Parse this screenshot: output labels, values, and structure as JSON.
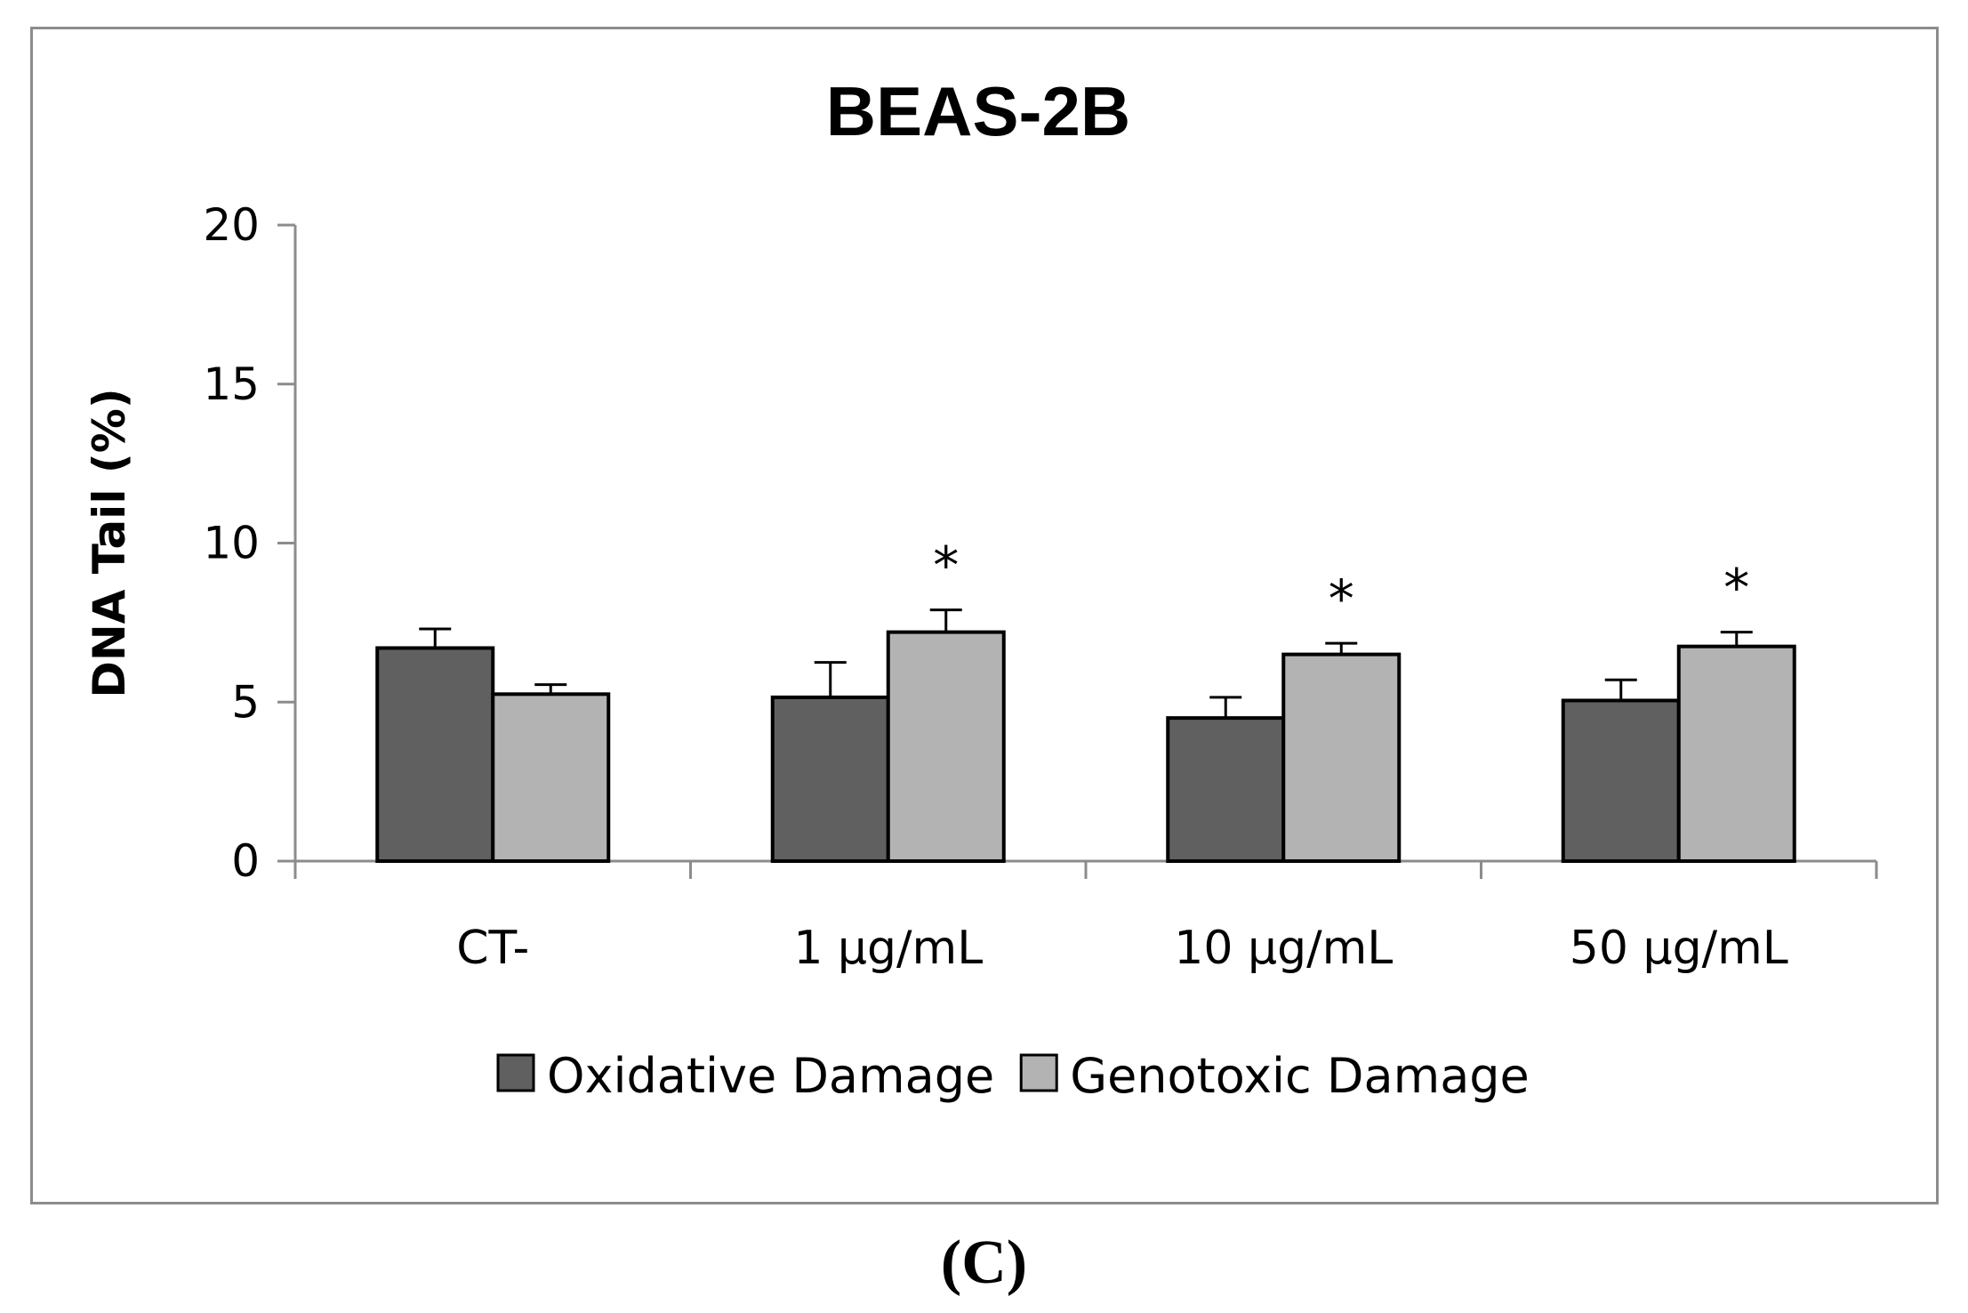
{
  "chart_data": {
    "type": "bar",
    "title": "BEAS-2B",
    "xlabel": "",
    "ylabel": "DNA Tail (%)",
    "ylim": [
      0,
      20
    ],
    "yticks": [
      0,
      5,
      10,
      15,
      20
    ],
    "categories": [
      "CT-",
      "1 µg/mL",
      "10 µg/mL",
      "50 µg/mL"
    ],
    "series": [
      {
        "name": "Oxidative Damage",
        "color": "#606060",
        "values": [
          6.7,
          5.15,
          4.5,
          5.05
        ],
        "errors": [
          0.6,
          1.1,
          0.65,
          0.65
        ]
      },
      {
        "name": "Genotoxic Damage",
        "color": "#b3b3b3",
        "values": [
          5.25,
          7.2,
          6.5,
          6.75
        ],
        "errors": [
          0.3,
          0.7,
          0.35,
          0.45
        ]
      }
    ],
    "significance": [
      {
        "category": "1 µg/mL",
        "series": "Genotoxic Damage",
        "label": "*"
      },
      {
        "category": "10 µg/mL",
        "series": "Genotoxic Damage",
        "label": "*"
      },
      {
        "category": "50 µg/mL",
        "series": "Genotoxic Damage",
        "label": "*"
      }
    ],
    "legend_position": "bottom"
  },
  "panel_label": "(C)"
}
